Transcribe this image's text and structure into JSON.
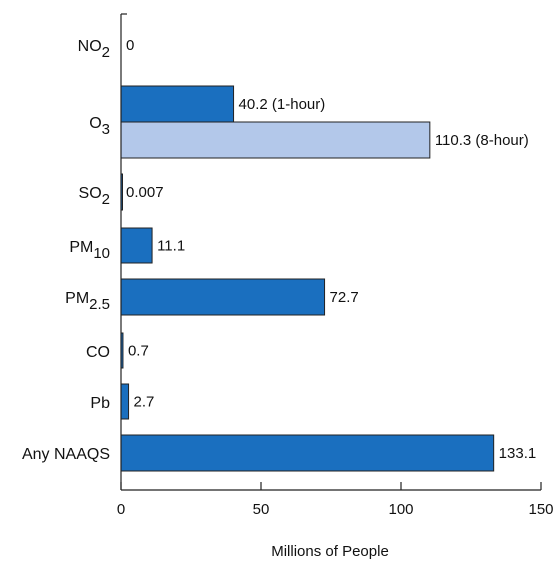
{
  "chart_data": {
    "type": "bar",
    "orientation": "horizontal",
    "xlabel": "Millions of People",
    "ylabel": "",
    "xlim": [
      0,
      150
    ],
    "xticks": [
      0,
      50,
      100,
      150
    ],
    "grid": false,
    "colors": {
      "primary": "#1a6fbf",
      "secondary": "#b3c8ea",
      "axis": "#222222"
    },
    "categories": [
      {
        "base": "NO",
        "sub": "2",
        "label": "NO2"
      },
      {
        "base": "O",
        "sub": "3",
        "label": "O3"
      },
      {
        "base": "SO",
        "sub": "2",
        "label": "SO2"
      },
      {
        "base": "PM",
        "sub": "10",
        "label": "PM10"
      },
      {
        "base": "PM",
        "sub": "2.5",
        "label": "PM2.5"
      },
      {
        "base": "CO",
        "sub": "",
        "label": "CO"
      },
      {
        "base": "Pb",
        "sub": "",
        "label": "Pb"
      },
      {
        "base": "Any NAAQS",
        "sub": "",
        "label": "Any NAAQS"
      }
    ],
    "bars": [
      {
        "category": "NO2",
        "value": 0,
        "label": "0",
        "color": "primary"
      },
      {
        "category": "O3",
        "value": 40.2,
        "label": "40.2 (1-hour)",
        "color": "primary"
      },
      {
        "category": "O3",
        "value": 110.3,
        "label": "110.3 (8-hour)",
        "color": "secondary"
      },
      {
        "category": "SO2",
        "value": 0.007,
        "label": "0.007",
        "color": "primary"
      },
      {
        "category": "PM10",
        "value": 11.1,
        "label": "11.1",
        "color": "primary"
      },
      {
        "category": "PM2.5",
        "value": 72.7,
        "label": "72.7",
        "color": "primary"
      },
      {
        "category": "CO",
        "value": 0.7,
        "label": "0.7",
        "color": "primary"
      },
      {
        "category": "Pb",
        "value": 2.7,
        "label": "2.7",
        "color": "primary"
      },
      {
        "category": "Any NAAQS",
        "value": 133.1,
        "label": "133.1",
        "color": "primary"
      }
    ]
  }
}
